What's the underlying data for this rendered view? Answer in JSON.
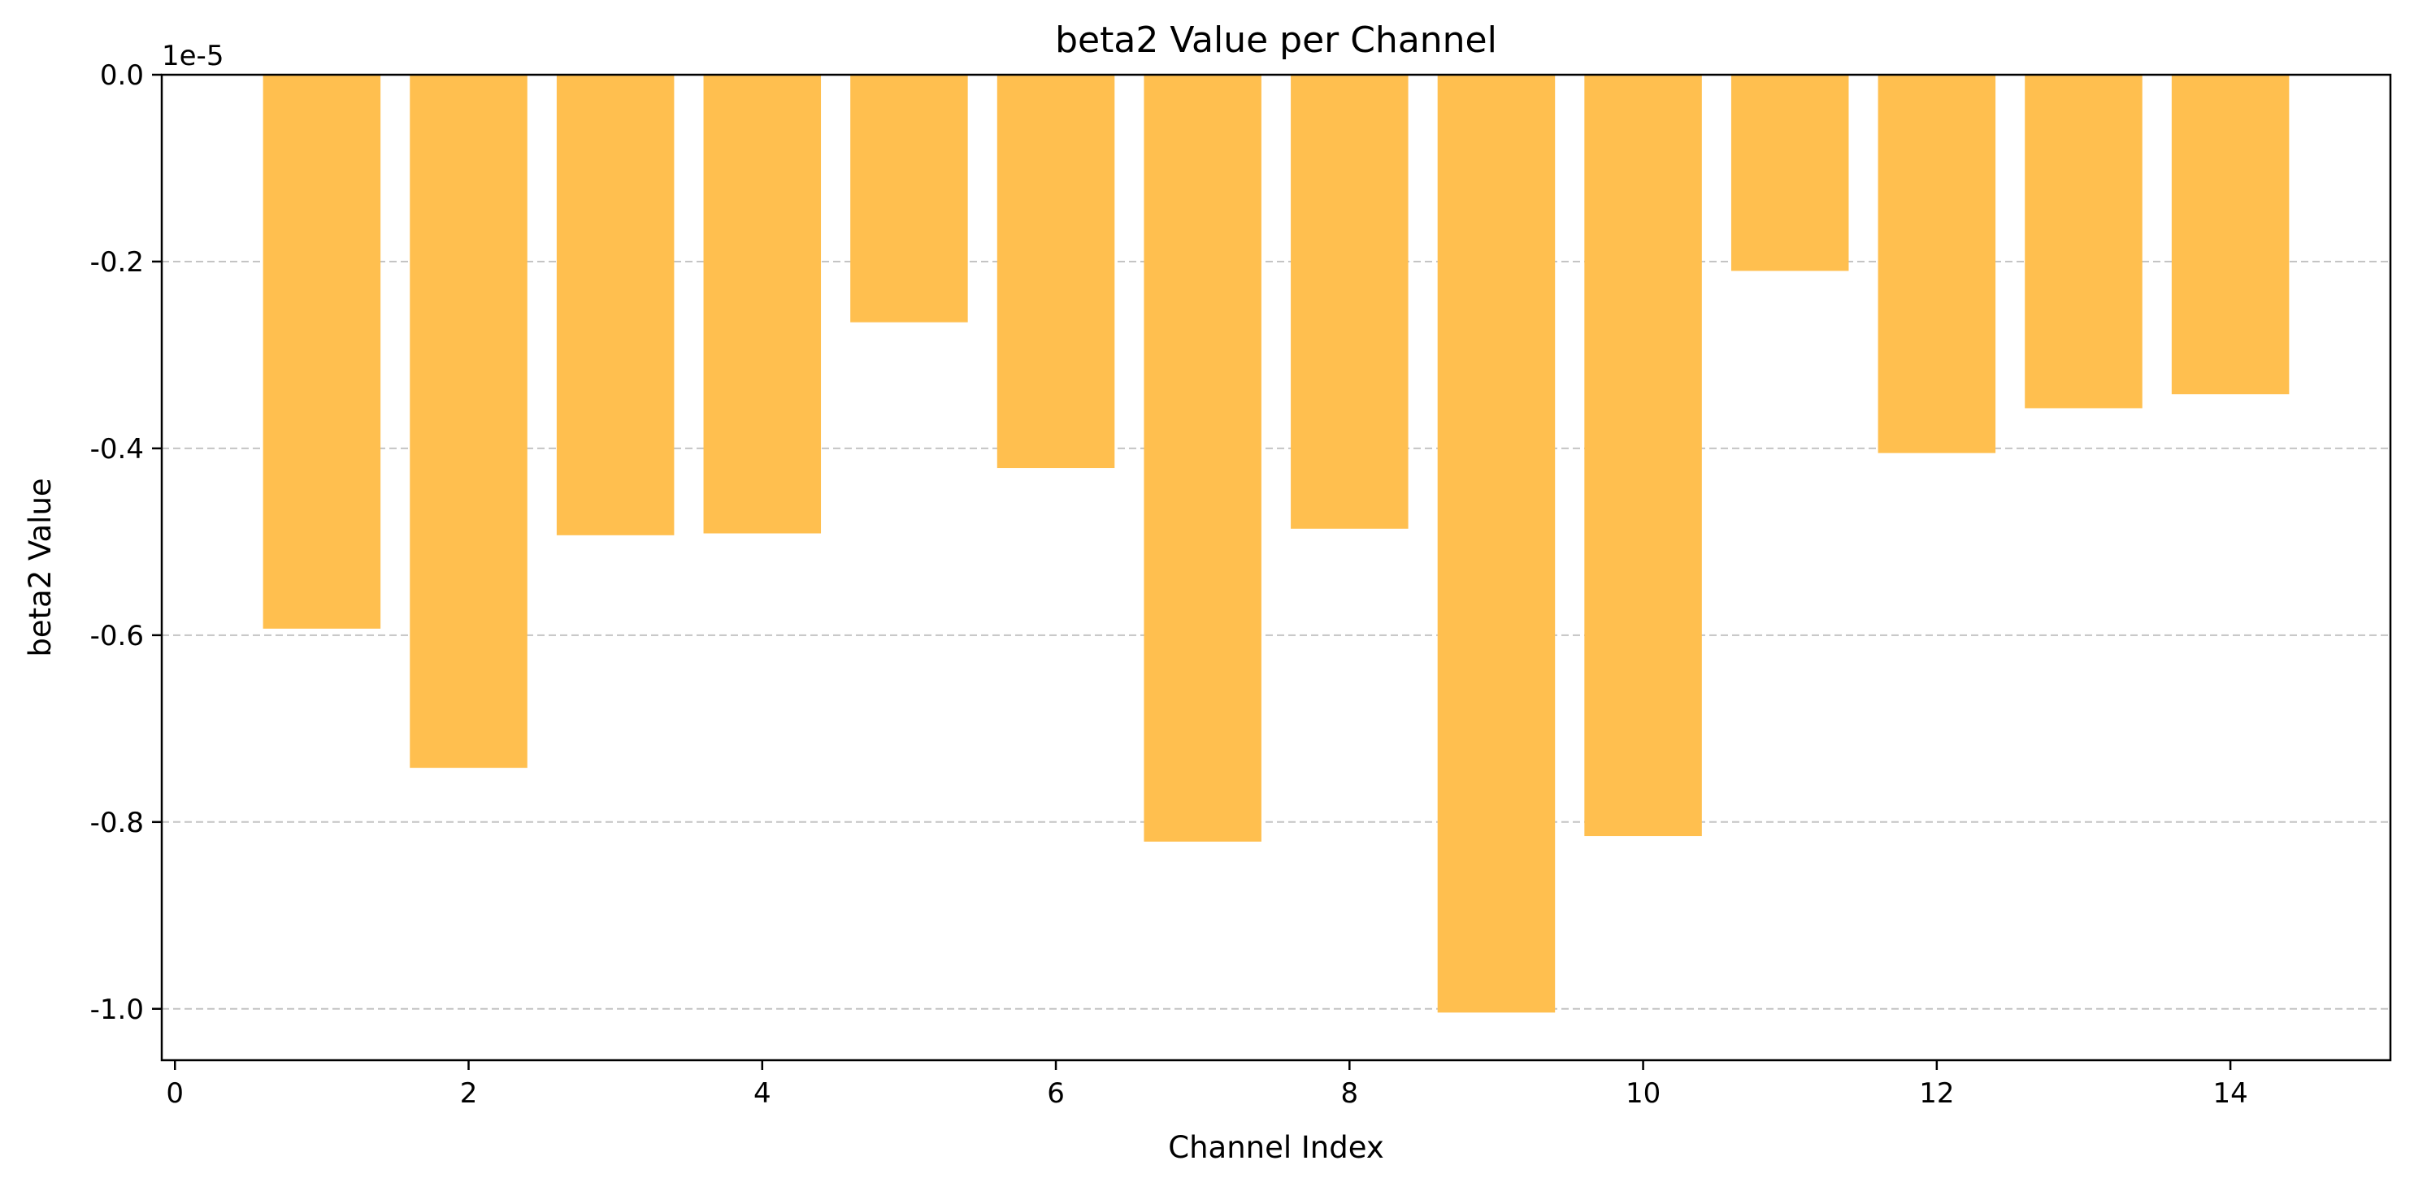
{
  "chart_data": {
    "type": "bar",
    "title": "beta2 Value per Channel",
    "xlabel": "Channel Index",
    "ylabel": "beta2 Value",
    "y_offset_label": "1e-5",
    "x": [
      1,
      2,
      3,
      4,
      5,
      6,
      7,
      8,
      9,
      10,
      11,
      12,
      13,
      14
    ],
    "values": [
      -0.593,
      -0.742,
      -0.493,
      -0.491,
      -0.265,
      -0.421,
      -0.821,
      -0.486,
      -1.004,
      -0.815,
      -0.21,
      -0.405,
      -0.357,
      -0.342
    ],
    "x_ticks": [
      0,
      2,
      4,
      6,
      8,
      10,
      12,
      14
    ],
    "x_tick_labels": [
      "0",
      "2",
      "4",
      "6",
      "8",
      "10",
      "12",
      "14"
    ],
    "y_ticks": [
      0.0,
      -0.2,
      -0.4,
      -0.6,
      -0.8,
      -1.0
    ],
    "y_tick_labels": [
      "0.0",
      "-0.2",
      "-0.4",
      "-0.6",
      "-0.8",
      "-1.0"
    ],
    "xlim": [
      -0.09,
      15.09
    ],
    "ylim": [
      -1.055,
      0.0
    ],
    "grid": "horizontal-dashed",
    "bar_color": "#ffbf4f"
  }
}
